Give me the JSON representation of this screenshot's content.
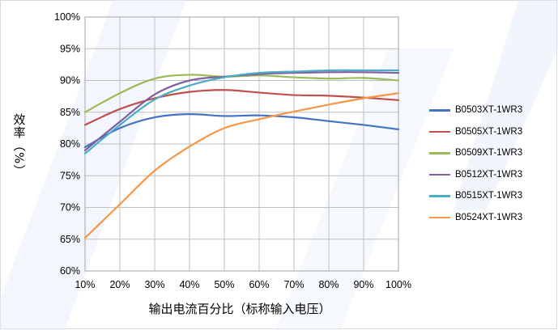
{
  "chart_data": {
    "type": "line",
    "xlabel": "输出电流百分比（标称输入电压）",
    "ylabel": "效率（%）",
    "categories": [
      "10%",
      "20%",
      "30%",
      "40%",
      "50%",
      "60%",
      "70%",
      "80%",
      "90%",
      "100%"
    ],
    "y_ticks": [
      "60%",
      "65%",
      "70%",
      "75%",
      "80%",
      "85%",
      "90%",
      "95%",
      "100%"
    ],
    "ylim": [
      60,
      100
    ],
    "grid": true,
    "legend_position": "right",
    "series": [
      {
        "name": "B0503XT-1WR3",
        "color": "#4472c4",
        "values": [
          79.5,
          82.5,
          84.2,
          84.7,
          84.4,
          84.5,
          84.2,
          83.6,
          83.0,
          82.3
        ]
      },
      {
        "name": "B0505XT-1WR3",
        "color": "#c0504d",
        "values": [
          83.0,
          85.5,
          87.2,
          88.2,
          88.5,
          88.1,
          87.7,
          87.6,
          87.3,
          86.9
        ]
      },
      {
        "name": "B0509XT-1WR3",
        "color": "#9bbb59",
        "values": [
          85.0,
          88.0,
          90.3,
          90.9,
          90.6,
          90.8,
          90.5,
          90.3,
          90.4,
          90.0
        ]
      },
      {
        "name": "B0512XT-1WR3",
        "color": "#7f5f9f",
        "values": [
          79.0,
          83.5,
          87.8,
          90.0,
          90.6,
          91.0,
          91.2,
          91.3,
          91.3,
          91.2
        ]
      },
      {
        "name": "B0515XT-1WR3",
        "color": "#4bacc6",
        "values": [
          78.5,
          83.0,
          87.0,
          89.2,
          90.5,
          91.2,
          91.4,
          91.6,
          91.6,
          91.6
        ]
      },
      {
        "name": "B0524XT-1WR3",
        "color": "#f79646",
        "values": [
          65.2,
          70.5,
          75.8,
          79.6,
          82.5,
          83.9,
          85.1,
          86.2,
          87.2,
          88.0
        ]
      }
    ]
  }
}
